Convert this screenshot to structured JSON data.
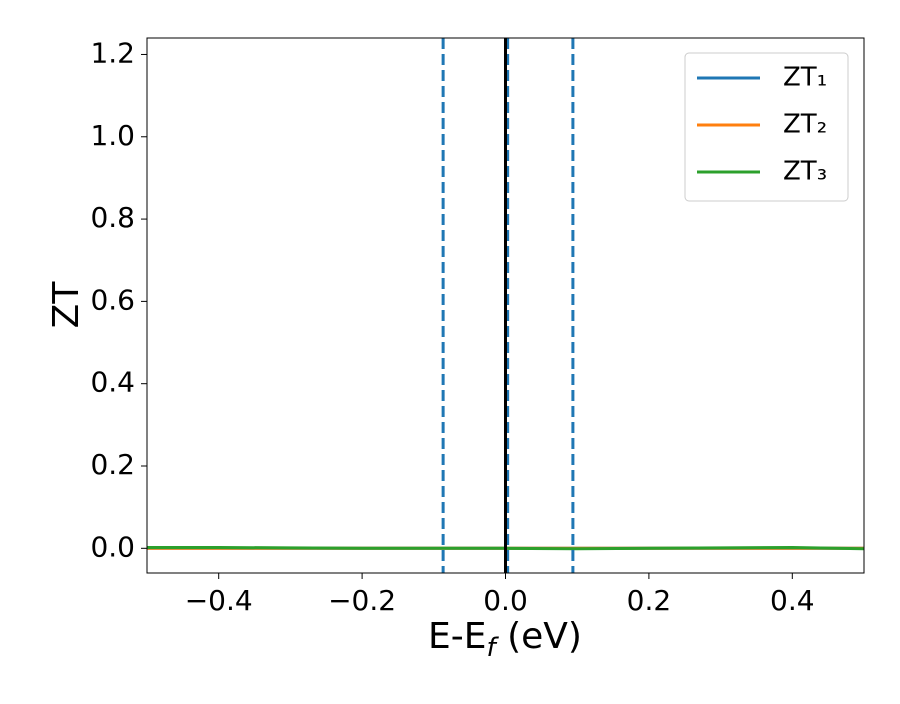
{
  "chart_data": {
    "type": "line",
    "xlabel": [
      "E-E",
      "f",
      " (eV)"
    ],
    "ylabel": "ZT",
    "x": [
      -0.5,
      -0.4,
      -0.3,
      -0.2,
      -0.1,
      0,
      0.1,
      0.2,
      0.3,
      0.4,
      0.5
    ],
    "series": [
      {
        "name": "ZT₁",
        "color": "#1f77b4",
        "values": [
          0,
          0,
          0,
          0,
          0,
          0,
          0,
          0,
          0,
          0,
          0
        ]
      },
      {
        "name": "ZT₂",
        "color": "#ff7f0e",
        "values": [
          0,
          0,
          0,
          0,
          0,
          0,
          0,
          0,
          0,
          0,
          0
        ]
      },
      {
        "name": "ZT₃",
        "color": "#2ca02c",
        "values": [
          0.002,
          0.002,
          0.001,
          0,
          0,
          0,
          -0.001,
          0,
          0.001,
          0.002,
          -0.001
        ]
      }
    ],
    "vlines": [
      {
        "x": -0.087,
        "color": "#1f77b4",
        "style": "dashed"
      },
      {
        "x": 0.003,
        "color": "#1f77b4",
        "style": "dashed"
      },
      {
        "x": 0.094,
        "color": "#1f77b4",
        "style": "dashed"
      },
      {
        "x": 0,
        "color": "#000000",
        "style": "solid"
      }
    ],
    "xlim": [
      -0.5,
      0.5
    ],
    "ylim": [
      -0.06,
      1.24
    ],
    "xticks": [
      {
        "value": -0.4,
        "label": "−0.4"
      },
      {
        "value": -0.2,
        "label": "−0.2"
      },
      {
        "value": 0,
        "label": "0.0"
      },
      0.2,
      0.4
    ],
    "yticks": [
      {
        "value": 0,
        "label": "0.0"
      },
      0.2,
      0.4,
      0.6,
      0.8,
      {
        "value": 1,
        "label": "1.0"
      },
      1.2
    ],
    "legend": "upper right",
    "grid": false
  }
}
